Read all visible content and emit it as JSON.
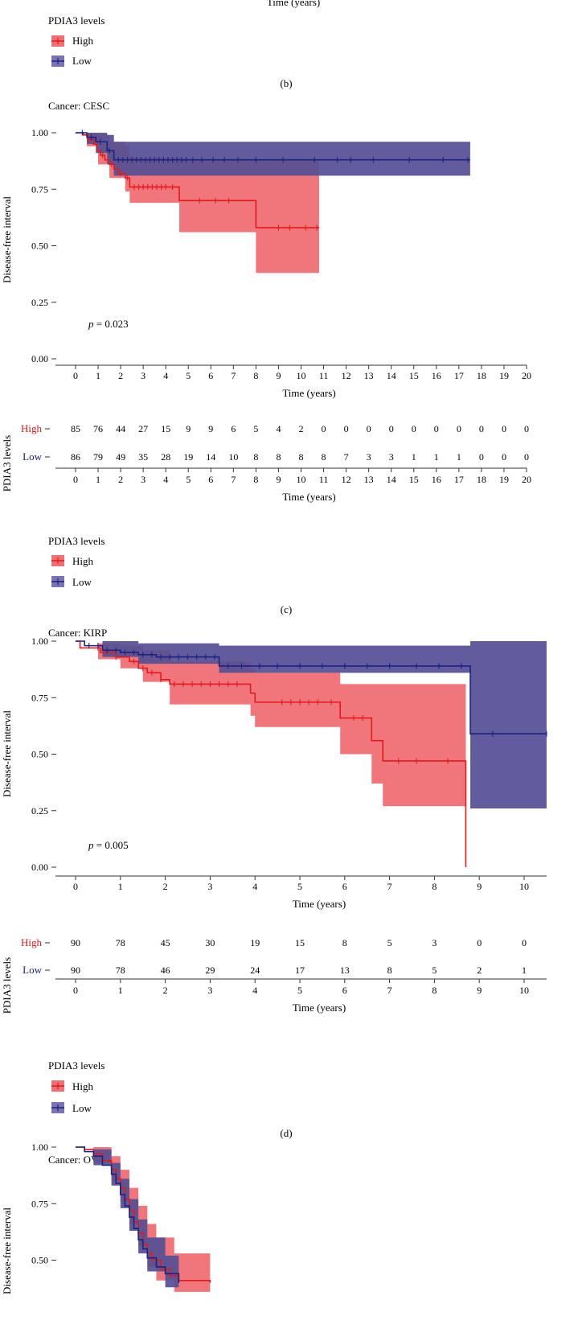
{
  "top_fragment": {
    "xlabel": "Time (years)",
    "legend_title": "PDIA3 levels",
    "legend": [
      "High",
      "Low"
    ],
    "caption": "(b)"
  },
  "colors": {
    "high": "#e31a1c",
    "high_band": "#ef6f75",
    "low": "#1a237e",
    "low_band": "#7b74b4",
    "overlap": "#7b3a78"
  },
  "panels": [
    {
      "id": "c",
      "title": "Cancer: CESC",
      "caption": "(c)",
      "pvalue_label": "p",
      "pvalue_text": " = 0.023",
      "legend_title": "PDIA3 levels",
      "legend": [
        "High",
        "Low"
      ],
      "risk_ylabel": "PDIA3 levels",
      "chart_data": {
        "type": "line",
        "ylabel": "Disease-free interval",
        "xlabel": "Time (years)",
        "xlim": [
          0,
          20
        ],
        "ylim": [
          0,
          1
        ],
        "xticks": [
          0,
          1,
          2,
          3,
          4,
          5,
          6,
          7,
          8,
          9,
          10,
          11,
          12,
          13,
          14,
          15,
          16,
          17,
          18,
          19,
          20
        ],
        "yticks": [
          "0.00",
          "0.25",
          "0.50",
          "0.75",
          "1.00"
        ],
        "series": [
          {
            "name": "High",
            "steps": [
              [
                0,
                1.0
              ],
              [
                0.35,
                0.99
              ],
              [
                0.55,
                0.97
              ],
              [
                0.8,
                0.95
              ],
              [
                0.95,
                0.92
              ],
              [
                1.1,
                0.9
              ],
              [
                1.3,
                0.88
              ],
              [
                1.5,
                0.86
              ],
              [
                1.7,
                0.84
              ],
              [
                1.9,
                0.82
              ],
              [
                2.2,
                0.8
              ],
              [
                2.4,
                0.76
              ],
              [
                4.6,
                0.7
              ],
              [
                8.0,
                0.58
              ],
              [
                10.8,
                0.58
              ]
            ],
            "band": [
              [
                0,
                1.0,
                1.0
              ],
              [
                0.5,
                0.94,
                1.0
              ],
              [
                1.0,
                0.86,
                0.99
              ],
              [
                1.5,
                0.8,
                0.96
              ],
              [
                2.2,
                0.74,
                0.94
              ],
              [
                2.4,
                0.69,
                0.89
              ],
              [
                4.6,
                0.56,
                0.88
              ],
              [
                8.0,
                0.38,
                0.88
              ],
              [
                10.8,
                0.38,
                0.88
              ]
            ],
            "censors": [
              0.6,
              1.2,
              1.6,
              2.0,
              2.3,
              2.6,
              2.8,
              3.0,
              3.2,
              3.4,
              3.6,
              3.8,
              4.0,
              4.3,
              5.5,
              6.2,
              6.8,
              9.0,
              9.5,
              10.2,
              10.7
            ]
          },
          {
            "name": "Low",
            "steps": [
              [
                0,
                1.0
              ],
              [
                0.5,
                0.98
              ],
              [
                0.9,
                0.96
              ],
              [
                1.4,
                0.92
              ],
              [
                1.7,
                0.88
              ],
              [
                17.5,
                0.88
              ]
            ],
            "band": [
              [
                0,
                1.0,
                1.0
              ],
              [
                0.5,
                0.95,
                1.0
              ],
              [
                0.9,
                0.91,
                1.0
              ],
              [
                1.4,
                0.86,
                0.99
              ],
              [
                1.7,
                0.81,
                0.96
              ],
              [
                17.5,
                0.81,
                0.96
              ]
            ],
            "censors": [
              0.3,
              0.7,
              1.1,
              1.5,
              1.9,
              2.1,
              2.3,
              2.5,
              2.7,
              2.9,
              3.1,
              3.3,
              3.5,
              3.7,
              3.9,
              4.1,
              4.3,
              4.5,
              4.7,
              4.9,
              5.2,
              5.6,
              6.1,
              6.6,
              7.2,
              8.0,
              9.2,
              10.6,
              11.6,
              12.2,
              13.2,
              14.8,
              16.3,
              17.4
            ]
          }
        ],
        "risk_table": {
          "times": [
            0,
            1,
            2,
            3,
            4,
            5,
            6,
            7,
            8,
            9,
            10,
            11,
            12,
            13,
            14,
            15,
            16,
            17,
            18,
            19,
            20
          ],
          "rows": [
            {
              "label": "High",
              "values": [
                "85",
                "76",
                "44",
                "27",
                "15",
                "9",
                "9",
                "6",
                "5",
                "4",
                "2",
                "0",
                "0",
                "0",
                "0",
                "0",
                "0",
                "0",
                "0",
                "0",
                "0"
              ]
            },
            {
              "label": "Low",
              "values": [
                "86",
                "79",
                "49",
                "35",
                "28",
                "19",
                "14",
                "10",
                "8",
                "8",
                "8",
                "8",
                "7",
                "3",
                "3",
                "1",
                "1",
                "1",
                "0",
                "0",
                "0"
              ]
            }
          ]
        }
      }
    },
    {
      "id": "d",
      "title": "Cancer: KIRP",
      "caption": "(d)",
      "pvalue_label": "p",
      "pvalue_text": " = 0.005",
      "legend_title": "PDIA3 levels",
      "legend": [
        "High",
        "Low"
      ],
      "risk_ylabel": "PDIA3 levels",
      "chart_data": {
        "type": "line",
        "ylabel": "Disease-free interval",
        "xlabel": "Time (years)",
        "xlim": [
          0,
          10.5
        ],
        "ylim": [
          0,
          1
        ],
        "xticks": [
          0,
          1,
          2,
          3,
          4,
          5,
          6,
          7,
          8,
          9,
          10
        ],
        "yticks": [
          "0.00",
          "0.25",
          "0.50",
          "0.75",
          "1.00"
        ],
        "series": [
          {
            "name": "High",
            "steps": [
              [
                0,
                1.0
              ],
              [
                0.1,
                0.97
              ],
              [
                0.55,
                0.95
              ],
              [
                0.9,
                0.93
              ],
              [
                1.2,
                0.91
              ],
              [
                1.4,
                0.88
              ],
              [
                1.6,
                0.86
              ],
              [
                1.9,
                0.83
              ],
              [
                2.1,
                0.81
              ],
              [
                3.9,
                0.77
              ],
              [
                4.0,
                0.73
              ],
              [
                5.9,
                0.66
              ],
              [
                6.6,
                0.56
              ],
              [
                6.85,
                0.47
              ],
              [
                8.7,
                0.0
              ]
            ],
            "band": [
              [
                0,
                1.0,
                1.0
              ],
              [
                0.5,
                0.92,
                0.99
              ],
              [
                1.0,
                0.88,
                0.98
              ],
              [
                1.5,
                0.82,
                0.96
              ],
              [
                2.1,
                0.72,
                0.91
              ],
              [
                3.9,
                0.67,
                0.88
              ],
              [
                4.0,
                0.62,
                0.86
              ],
              [
                5.9,
                0.5,
                0.81
              ],
              [
                6.6,
                0.37,
                0.81
              ],
              [
                6.85,
                0.27,
                0.81
              ],
              [
                8.7,
                0.27,
                0.81
              ]
            ],
            "censors": [
              0.5,
              0.9,
              1.3,
              1.5,
              1.7,
              1.9,
              2.2,
              2.4,
              2.6,
              2.8,
              3.0,
              3.2,
              3.4,
              3.6,
              4.6,
              4.8,
              5.0,
              5.2,
              5.4,
              5.7,
              6.2,
              6.4,
              7.2,
              7.6,
              8.3
            ]
          },
          {
            "name": "Low",
            "steps": [
              [
                0,
                1.0
              ],
              [
                0.2,
                0.98
              ],
              [
                0.6,
                0.96
              ],
              [
                1.0,
                0.95
              ],
              [
                1.4,
                0.94
              ],
              [
                1.8,
                0.93
              ],
              [
                3.2,
                0.89
              ],
              [
                8.8,
                0.59
              ],
              [
                10.5,
                0.59
              ]
            ],
            "band": [
              [
                0,
                1.0,
                1.0
              ],
              [
                0.6,
                0.93,
                1.0
              ],
              [
                1.4,
                0.9,
                0.99
              ],
              [
                3.2,
                0.86,
                0.98
              ],
              [
                8.8,
                0.26,
                1.0
              ],
              [
                10.5,
                0.26,
                1.0
              ]
            ],
            "censors": [
              0.3,
              0.5,
              0.7,
              0.9,
              1.1,
              1.3,
              1.5,
              1.7,
              1.9,
              2.1,
              2.3,
              2.5,
              2.7,
              2.9,
              3.1,
              3.4,
              3.7,
              4.1,
              4.5,
              5.0,
              5.5,
              6.0,
              6.5,
              7.0,
              7.6,
              8.1,
              8.6,
              9.3,
              10.5
            ]
          }
        ],
        "risk_table": {
          "times": [
            0,
            1,
            2,
            3,
            4,
            5,
            6,
            7,
            8,
            9,
            10
          ],
          "rows": [
            {
              "label": "High",
              "values": [
                "90",
                "78",
                "45",
                "30",
                "19",
                "15",
                "8",
                "5",
                "3",
                "0",
                "0"
              ]
            },
            {
              "label": "Low",
              "values": [
                "90",
                "78",
                "46",
                "29",
                "24",
                "17",
                "13",
                "8",
                "5",
                "2",
                "1"
              ]
            }
          ]
        }
      }
    },
    {
      "id": "e",
      "title": "Cancer: OV",
      "chart_data": {
        "type": "line",
        "ylabel": "Disease-free interval",
        "xlim": [
          0,
          10.5
        ],
        "ylim": [
          0,
          1
        ],
        "yticks": [
          "0.50",
          "0.75",
          "1.00"
        ],
        "series": [
          {
            "name": "High",
            "steps": [
              [
                0,
                1.0
              ],
              [
                0.2,
                0.99
              ],
              [
                0.4,
                0.97
              ],
              [
                0.6,
                0.94
              ],
              [
                0.8,
                0.9
              ],
              [
                0.9,
                0.86
              ],
              [
                1.0,
                0.82
              ],
              [
                1.1,
                0.77
              ],
              [
                1.2,
                0.72
              ],
              [
                1.3,
                0.67
              ],
              [
                1.4,
                0.62
              ],
              [
                1.5,
                0.57
              ],
              [
                1.6,
                0.53
              ],
              [
                1.7,
                0.5
              ],
              [
                1.9,
                0.46
              ],
              [
                2.1,
                0.43
              ],
              [
                2.3,
                0.41
              ],
              [
                3.0,
                0.4
              ]
            ],
            "band": [
              [
                0,
                1.0,
                1.0
              ],
              [
                0.4,
                0.93,
                1.0
              ],
              [
                0.8,
                0.85,
                0.96
              ],
              [
                1.0,
                0.76,
                0.9
              ],
              [
                1.2,
                0.66,
                0.82
              ],
              [
                1.4,
                0.56,
                0.74
              ],
              [
                1.6,
                0.47,
                0.66
              ],
              [
                1.8,
                0.41,
                0.6
              ],
              [
                2.2,
                0.36,
                0.53
              ],
              [
                3.0,
                0.34,
                0.51
              ]
            ]
          },
          {
            "name": "Low",
            "steps": [
              [
                0,
                1.0
              ],
              [
                0.2,
                0.98
              ],
              [
                0.4,
                0.96
              ],
              [
                0.6,
                0.92
              ],
              [
                0.8,
                0.88
              ],
              [
                0.9,
                0.84
              ],
              [
                1.0,
                0.79
              ],
              [
                1.1,
                0.74
              ],
              [
                1.2,
                0.69
              ],
              [
                1.3,
                0.64
              ],
              [
                1.4,
                0.59
              ],
              [
                1.5,
                0.55
              ],
              [
                1.6,
                0.51
              ],
              [
                1.8,
                0.47
              ],
              [
                2.0,
                0.44
              ],
              [
                2.3,
                0.4
              ]
            ],
            "band": [
              [
                0,
                1.0,
                1.0
              ],
              [
                0.4,
                0.92,
                0.99
              ],
              [
                0.8,
                0.83,
                0.93
              ],
              [
                1.0,
                0.73,
                0.86
              ],
              [
                1.2,
                0.63,
                0.77
              ],
              [
                1.4,
                0.53,
                0.68
              ],
              [
                1.6,
                0.45,
                0.6
              ],
              [
                2.0,
                0.38,
                0.52
              ],
              [
                2.3,
                0.35,
                0.48
              ]
            ]
          }
        ]
      }
    }
  ]
}
